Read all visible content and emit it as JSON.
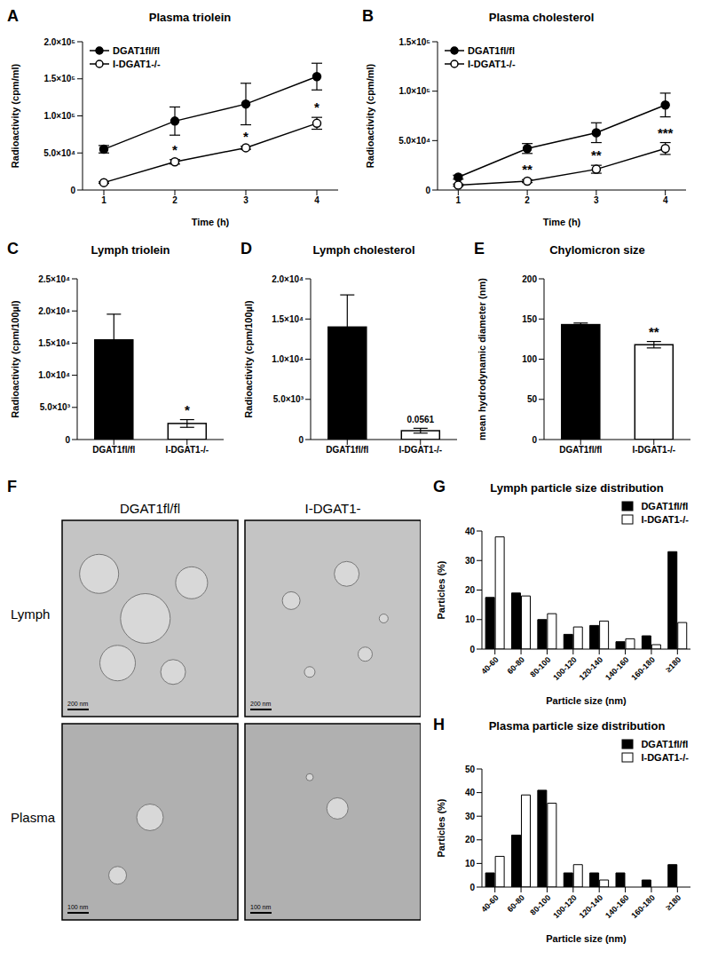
{
  "chart_data": [
    {
      "label": "A",
      "type": "line",
      "title": "Plasma triolein",
      "x_label": "Time (h)",
      "y_label": "Radioactivity (cpm/ml)",
      "x": [
        1,
        2,
        3,
        4
      ],
      "xlim": [
        0.7,
        4.3
      ],
      "xticks": [
        1,
        2,
        3,
        4
      ],
      "ylim": [
        0,
        200000
      ],
      "yticks": [
        0,
        {
          "value": 50000,
          "label": "5.0×10⁴"
        },
        {
          "value": 100000,
          "label": "1.0×10⁵"
        },
        {
          "value": 150000,
          "label": "1.5×10⁵"
        },
        {
          "value": 200000,
          "label": "2.0×10⁵"
        }
      ],
      "legend": "top left",
      "series": [
        {
          "name": "DGAT1fl/fl",
          "color": "#000000",
          "marker": "filled_circle",
          "values": [
            55000,
            93000,
            116000,
            153000
          ],
          "errors": [
            5000,
            19000,
            28000,
            18000
          ]
        },
        {
          "name": "I-DGAT1-/-",
          "color": "#000000",
          "marker": "open_circle",
          "values": [
            10000,
            38000,
            57000,
            90000
          ],
          "errors": [
            1000,
            3000,
            2000,
            8000
          ],
          "annotations": [
            null,
            "*",
            "*",
            "*"
          ]
        }
      ]
    },
    {
      "label": "B",
      "type": "line",
      "title": "Plasma cholesterol",
      "x_label": "Time (h)",
      "y_label": "Radioactivity (cpm/ml)",
      "x": [
        1,
        2,
        3,
        4
      ],
      "xlim": [
        0.7,
        4.3
      ],
      "xticks": [
        1,
        2,
        3,
        4
      ],
      "ylim": [
        0,
        150000
      ],
      "yticks": [
        0,
        {
          "value": 50000,
          "label": "5.0×10⁴"
        },
        {
          "value": 100000,
          "label": "1.0×10⁵"
        },
        {
          "value": 150000,
          "label": "1.5×10⁵"
        }
      ],
      "legend": "top left",
      "series": [
        {
          "name": "DGAT1fl/fl",
          "color": "#000000",
          "marker": "filled_circle",
          "values": [
            13000,
            42000,
            58000,
            86000
          ],
          "errors": [
            2000,
            5000,
            10000,
            12000
          ]
        },
        {
          "name": "I-DGAT1-/-",
          "color": "#000000",
          "marker": "open_circle",
          "values": [
            5000,
            9000,
            21000,
            42000
          ],
          "errors": [
            1000,
            1500,
            4000,
            6000
          ],
          "annotations": [
            null,
            "**",
            "**",
            "***"
          ]
        }
      ]
    },
    {
      "label": "C",
      "type": "bar",
      "title": "Lymph triolein",
      "y_label": "Radioactivity (cpm/100µl)",
      "categories": [
        "DGAT1fl/fl",
        "I-DGAT1-/-"
      ],
      "values": [
        15500,
        2500
      ],
      "errors": [
        4000,
        600
      ],
      "colors": [
        "#000000",
        "#ffffff"
      ],
      "annotations": [
        null,
        "*"
      ],
      "ylim": [
        0,
        25000
      ],
      "yticks": [
        0,
        {
          "value": 5000,
          "label": "5.0×10³"
        },
        {
          "value": 10000,
          "label": "1.0×10⁴"
        },
        {
          "value": 15000,
          "label": "1.5×10⁴"
        },
        {
          "value": 20000,
          "label": "2.0×10⁴"
        },
        {
          "value": 25000,
          "label": "2.5×10⁴"
        }
      ]
    },
    {
      "label": "D",
      "type": "bar",
      "title": "Lymph cholesterol",
      "y_label": "Radioactivity (cpm/100µl)",
      "categories": [
        "DGAT1fl/fl",
        "I-DGAT1-/-"
      ],
      "values": [
        14000,
        1100
      ],
      "errors": [
        4000,
        300
      ],
      "colors": [
        "#000000",
        "#ffffff"
      ],
      "annotations": [
        null,
        "0.0561"
      ],
      "ylim": [
        0,
        20000
      ],
      "yticks": [
        0,
        {
          "value": 5000,
          "label": "5.0×10³"
        },
        {
          "value": 10000,
          "label": "1.0×10⁴"
        },
        {
          "value": 15000,
          "label": "1.5×10⁴"
        },
        {
          "value": 20000,
          "label": "2.0×10⁴"
        }
      ]
    },
    {
      "label": "E",
      "type": "bar",
      "title": "Chylomicron size",
      "y_label": "mean hydrodynamic diameter (nm)",
      "categories": [
        "DGAT1fl/fl",
        "I-DGAT1-/-"
      ],
      "values": [
        143,
        118
      ],
      "errors": [
        2,
        4
      ],
      "colors": [
        "#000000",
        "#ffffff"
      ],
      "annotations": [
        null,
        "**"
      ],
      "ylim": [
        0,
        200
      ],
      "yticks": [
        0,
        50,
        100,
        150,
        200
      ]
    },
    {
      "label": "G",
      "type": "bar",
      "title": "Lymph particle size distribution",
      "x_label": "Particle size (nm)",
      "y_label": "Particles (%)",
      "categories": [
        "40-60",
        "60-80",
        "80-100",
        "100-120",
        "120-140",
        "140-160",
        "160-180",
        "≥180"
      ],
      "ylim": [
        0,
        40
      ],
      "yticks": [
        0,
        10,
        20,
        30,
        40
      ],
      "legend": "top right",
      "series": [
        {
          "name": "DGAT1fl/fl",
          "color": "#000000",
          "values": [
            17.5,
            19,
            10,
            5,
            8,
            2.5,
            4.5,
            33
          ]
        },
        {
          "name": "I-DGAT1-/-",
          "color": "#ffffff",
          "values": [
            38,
            18,
            12,
            7.5,
            9.5,
            3.5,
            1.5,
            9
          ]
        }
      ]
    },
    {
      "label": "H",
      "type": "bar",
      "title": "Plasma particle size distribution",
      "x_label": "Particle size (nm)",
      "y_label": "Particles (%)",
      "categories": [
        "40-60",
        "60-80",
        "80-100",
        "100-120",
        "120-140",
        "140-160",
        "160-180",
        "≥180"
      ],
      "ylim": [
        0,
        50
      ],
      "yticks": [
        0,
        10,
        20,
        30,
        40,
        50
      ],
      "legend": "top right",
      "series": [
        {
          "name": "DGAT1fl/fl",
          "color": "#000000",
          "values": [
            6,
            22,
            41,
            6,
            6,
            6,
            3,
            9.5
          ]
        },
        {
          "name": "I-DGAT1-/-",
          "color": "#ffffff",
          "values": [
            13,
            39,
            35.5,
            9.5,
            3,
            0,
            0,
            0
          ]
        }
      ]
    }
  ],
  "image_panel": {
    "label": "F",
    "columns": [
      "DGAT1fl/fl",
      "I-DGAT1-"
    ],
    "rows": [
      "Lymph",
      "Plasma"
    ],
    "scale_bars": [
      [
        "200 nm",
        "200 nm"
      ],
      [
        "100 nm",
        "100 nm"
      ]
    ]
  }
}
